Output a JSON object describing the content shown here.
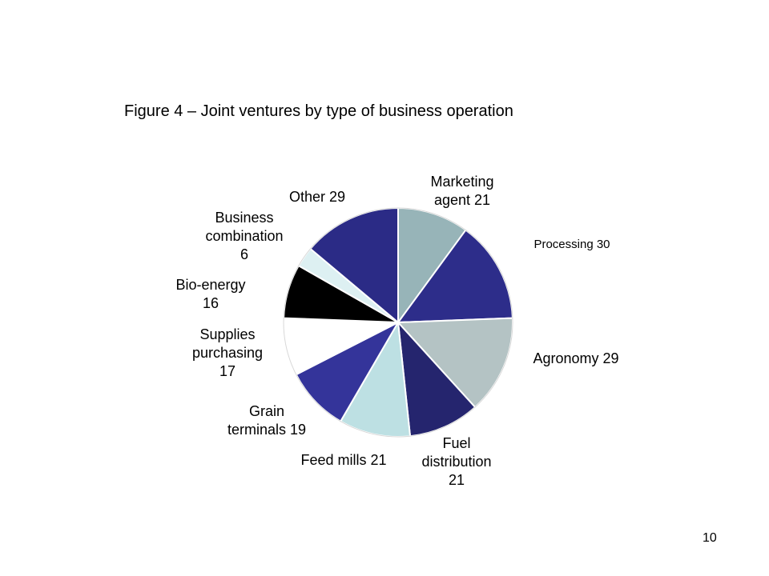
{
  "title": "Figure 4 – Joint ventures by type of business operation",
  "page_number": "10",
  "chart_data": {
    "type": "pie",
    "title": "Figure 4 – Joint ventures by type of business operation",
    "start": "12 o'clock, clockwise",
    "slices": [
      {
        "label": "Marketing agent",
        "value": 21,
        "color": "#97b4b8",
        "lines": [
          "Marketing",
          "agent 21"
        ]
      },
      {
        "label": "Processing",
        "value": 30,
        "color": "#2d2d8a",
        "lines": [
          "Processing 30"
        ]
      },
      {
        "label": "Agronomy",
        "value": 29,
        "color": "#b4c3c4",
        "lines": [
          "Agronomy 29"
        ]
      },
      {
        "label": "Fuel distribution",
        "value": 21,
        "color": "#25256e",
        "lines": [
          "Fuel",
          "distribution",
          "21"
        ]
      },
      {
        "label": "Feed mills",
        "value": 21,
        "color": "#bde0e3",
        "lines": [
          "Feed mills 21"
        ]
      },
      {
        "label": "Grain terminals",
        "value": 19,
        "color": "#34349a",
        "lines": [
          "Grain",
          "terminals 19"
        ]
      },
      {
        "label": "Supplies purchasing",
        "value": 17,
        "color": "#ffffff",
        "lines": [
          "Supplies",
          "purchasing",
          "17"
        ]
      },
      {
        "label": "Bio-energy",
        "value": 16,
        "color": "#000000",
        "lines": [
          "Bio-energy",
          "16"
        ]
      },
      {
        "label": "Business combination",
        "value": 6,
        "color": "#ddf0f2",
        "lines": [
          "Business",
          "combination",
          "6"
        ]
      },
      {
        "label": "Other",
        "value": 29,
        "color": "#2b2b86",
        "lines": [
          "Other 29"
        ]
      }
    ]
  }
}
